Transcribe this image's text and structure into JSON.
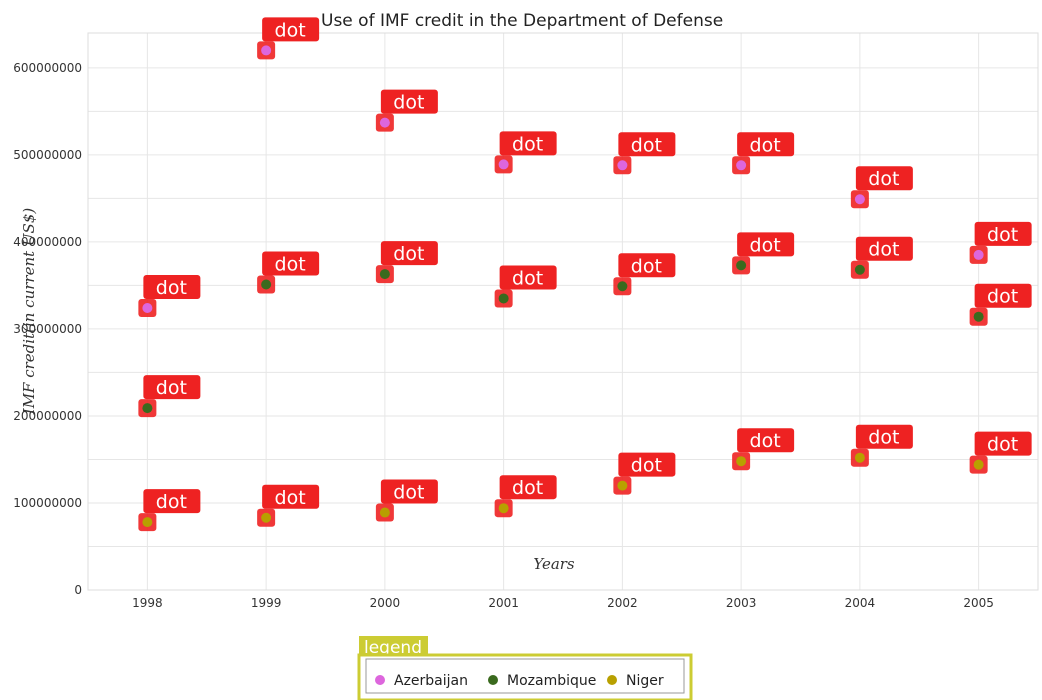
{
  "chart_data": {
    "type": "scatter",
    "title": "Use of IMF credit in the Department of Defense",
    "xlabel": "Years",
    "ylabel": "IMF credit(in current US$)",
    "categories": [
      "1998",
      "1999",
      "2000",
      "2001",
      "2002",
      "2003",
      "2004",
      "2005"
    ],
    "ylim": [
      0,
      640000000
    ],
    "yticks": [
      0,
      100000000,
      200000000,
      300000000,
      400000000,
      500000000,
      600000000
    ],
    "ytick_labels": [
      "0",
      "100000000",
      "200000000",
      "300000000",
      "400000000",
      "500000000",
      "600000000"
    ],
    "grid": true,
    "series": [
      {
        "name": "Azerbaijan",
        "color": "#dd66dd",
        "values": [
          324000000,
          620000000,
          537000000,
          489000000,
          488000000,
          488000000,
          449000000,
          385000000
        ]
      },
      {
        "name": "Mozambique",
        "color": "#3a6a1e",
        "values": [
          209000000,
          351000000,
          363000000,
          335000000,
          349000000,
          373000000,
          368000000,
          314000000
        ]
      },
      {
        "name": "Niger",
        "color": "#b8a000",
        "values": [
          78000000,
          83000000,
          89000000,
          94000000,
          120000000,
          148000000,
          152000000,
          144000000
        ]
      }
    ],
    "annotation_text": "dot",
    "annotation_color": "#ee2222",
    "legend": {
      "title": "legend",
      "position": "bottom-center",
      "title_bg": "#cccc33",
      "border": "#cccc33"
    }
  }
}
